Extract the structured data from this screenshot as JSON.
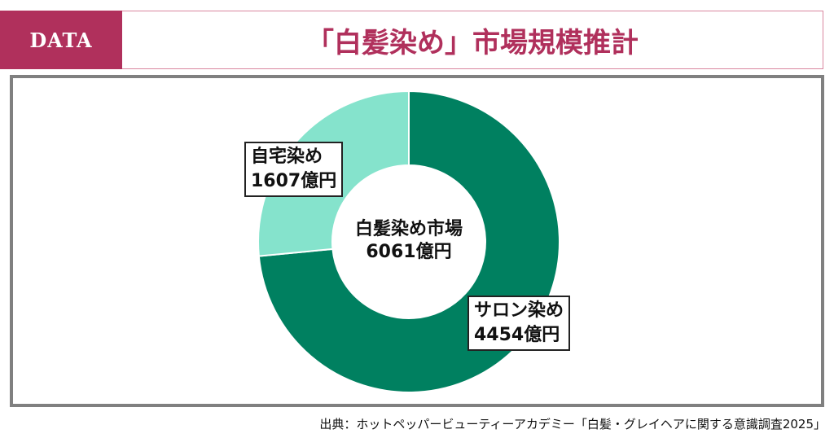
{
  "header": {
    "tag": "DATA",
    "title": "「白髪染め」市場規模推計"
  },
  "chart_data": {
    "type": "pie",
    "donut": true,
    "center_label": {
      "line1": "白髪染め市場",
      "line2": "6061億円"
    },
    "slices": [
      {
        "name": "サロン染め",
        "value": 4454,
        "value_label": "4454億円",
        "color": "#008060"
      },
      {
        "name": "自宅染め",
        "value": 1607,
        "value_label": "1607億円",
        "color": "#85e3cc"
      }
    ]
  },
  "source": "出典：ホットペッパービューティーアカデミー「白髪・グレイヘアに関する意識調査2025」"
}
